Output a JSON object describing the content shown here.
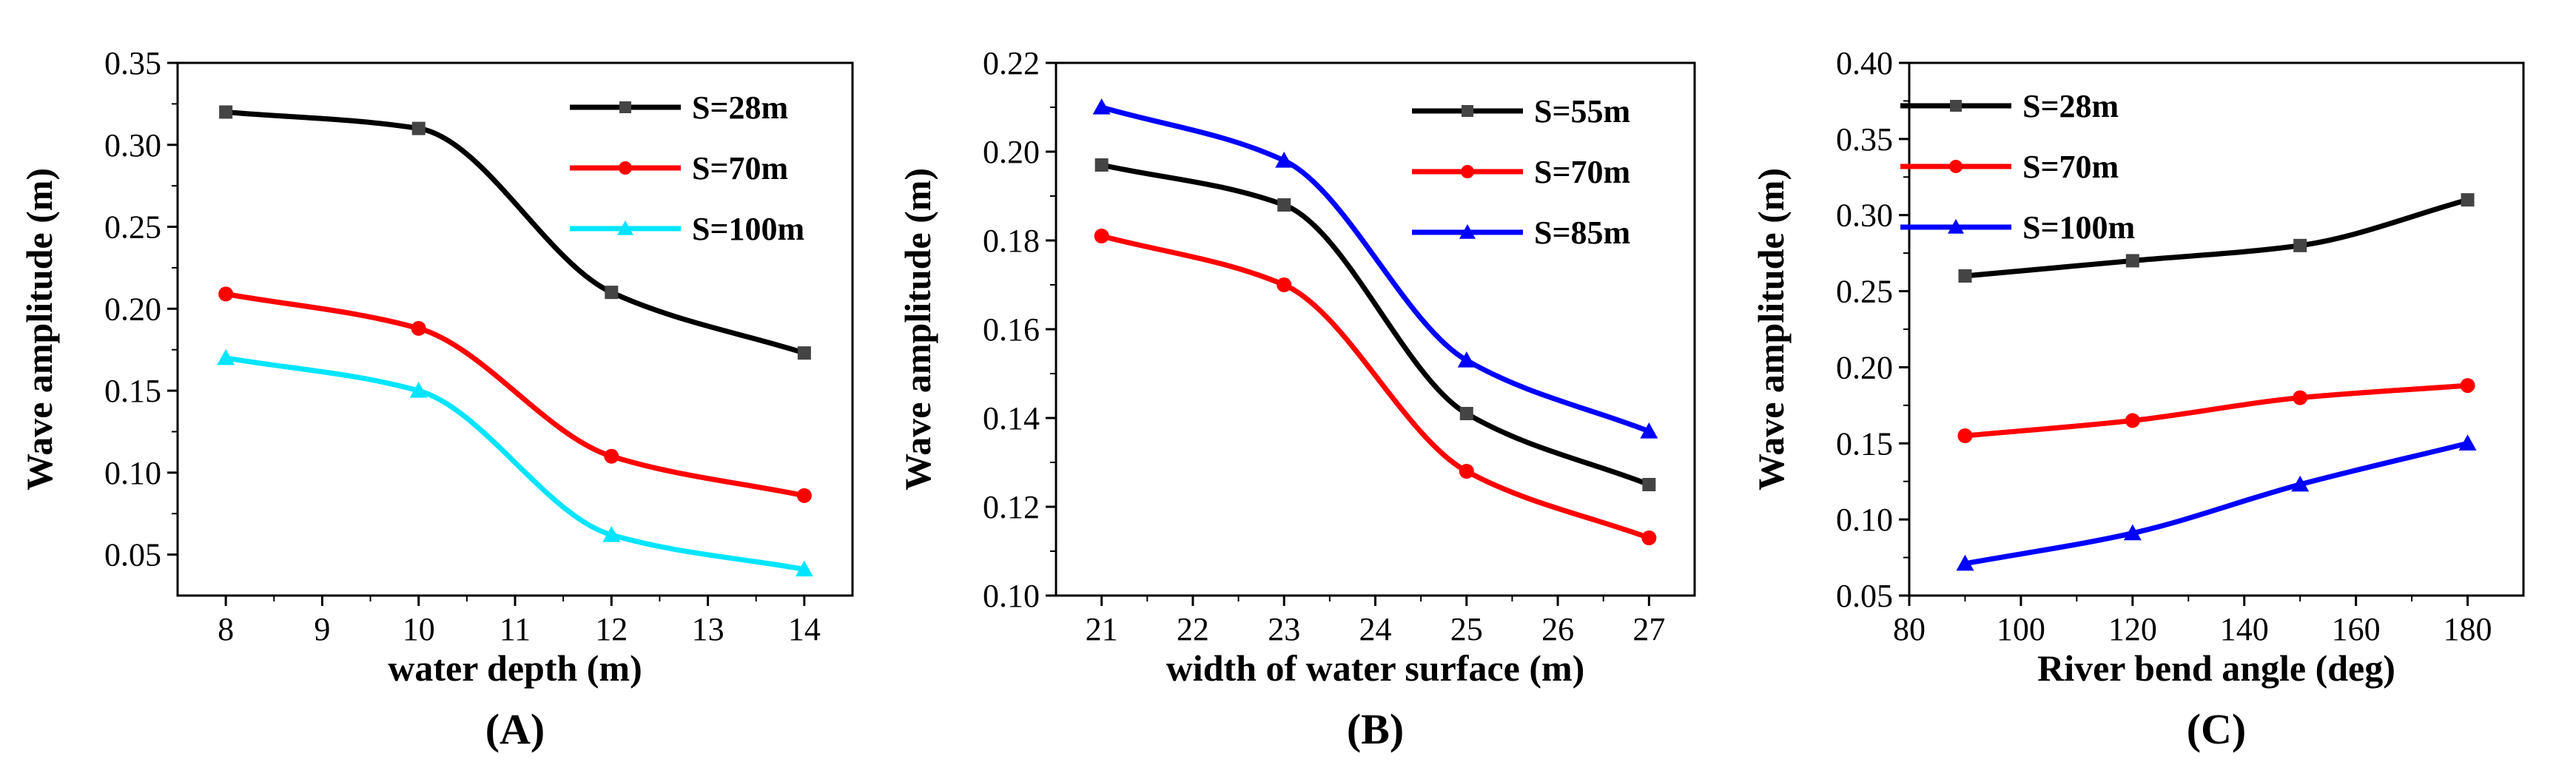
{
  "chart_data": [
    {
      "type": "line",
      "panel_label": "(A)",
      "xlabel": "water depth (m)",
      "ylabel": "Wave amplitude (m)",
      "xlim": [
        7.5,
        14.5
      ],
      "ylim": [
        0.025,
        0.35
      ],
      "x_ticks": [
        8,
        9,
        10,
        11,
        12,
        13,
        14
      ],
      "y_ticks": [
        0.05,
        0.1,
        0.15,
        0.2,
        0.25,
        0.3,
        0.35
      ],
      "y_decimals": 2,
      "x": [
        8,
        10,
        12,
        14
      ],
      "series": [
        {
          "name": "S=28m",
          "color": "#000000",
          "marker": "square",
          "values": [
            0.32,
            0.31,
            0.21,
            0.173
          ]
        },
        {
          "name": "S=70m",
          "color": "#ff0000",
          "marker": "circle",
          "values": [
            0.209,
            0.188,
            0.11,
            0.086
          ]
        },
        {
          "name": "S=100m",
          "color": "#00e5ff",
          "marker": "triangle",
          "values": [
            0.17,
            0.15,
            0.062,
            0.041
          ]
        }
      ],
      "legend_position": "top-right"
    },
    {
      "type": "line",
      "panel_label": "(B)",
      "xlabel": "width of water surface (m)",
      "ylabel": "Wave amplitude (m)",
      "xlim": [
        20.5,
        27.5
      ],
      "ylim": [
        0.1,
        0.22
      ],
      "x_ticks": [
        21,
        22,
        23,
        24,
        25,
        26,
        27
      ],
      "y_ticks": [
        0.1,
        0.12,
        0.14,
        0.16,
        0.18,
        0.2,
        0.22
      ],
      "y_decimals": 2,
      "x": [
        21,
        23,
        25,
        27
      ],
      "series": [
        {
          "name": "S=55m",
          "color": "#000000",
          "marker": "square",
          "values": [
            0.197,
            0.188,
            0.141,
            0.125
          ]
        },
        {
          "name": "S=70m",
          "color": "#ff0000",
          "marker": "circle",
          "values": [
            0.181,
            0.17,
            0.128,
            0.113
          ]
        },
        {
          "name": "S=85m",
          "color": "#0000ff",
          "marker": "triangle",
          "values": [
            0.21,
            0.198,
            0.153,
            0.137
          ]
        }
      ],
      "legend_position": "top-right"
    },
    {
      "type": "line",
      "panel_label": "(C)",
      "xlabel": "River bend angle (deg)",
      "ylabel": "Wave amplitude (m)",
      "xlim": [
        80,
        190
      ],
      "ylim": [
        0.05,
        0.4
      ],
      "x_ticks": [
        80,
        100,
        120,
        140,
        160,
        180
      ],
      "y_ticks": [
        0.05,
        0.1,
        0.15,
        0.2,
        0.25,
        0.3,
        0.35,
        0.4
      ],
      "y_decimals": 2,
      "x": [
        90,
        120,
        150,
        180
      ],
      "series": [
        {
          "name": "S=28m",
          "color": "#000000",
          "marker": "square",
          "values": [
            0.26,
            0.27,
            0.28,
            0.31
          ]
        },
        {
          "name": "S=70m",
          "color": "#ff0000",
          "marker": "circle",
          "values": [
            0.155,
            0.165,
            0.18,
            0.188
          ]
        },
        {
          "name": "S=100m",
          "color": "#0000ff",
          "marker": "triangle",
          "values": [
            0.071,
            0.091,
            0.123,
            0.15
          ]
        }
      ],
      "legend_position": "top-left"
    }
  ]
}
